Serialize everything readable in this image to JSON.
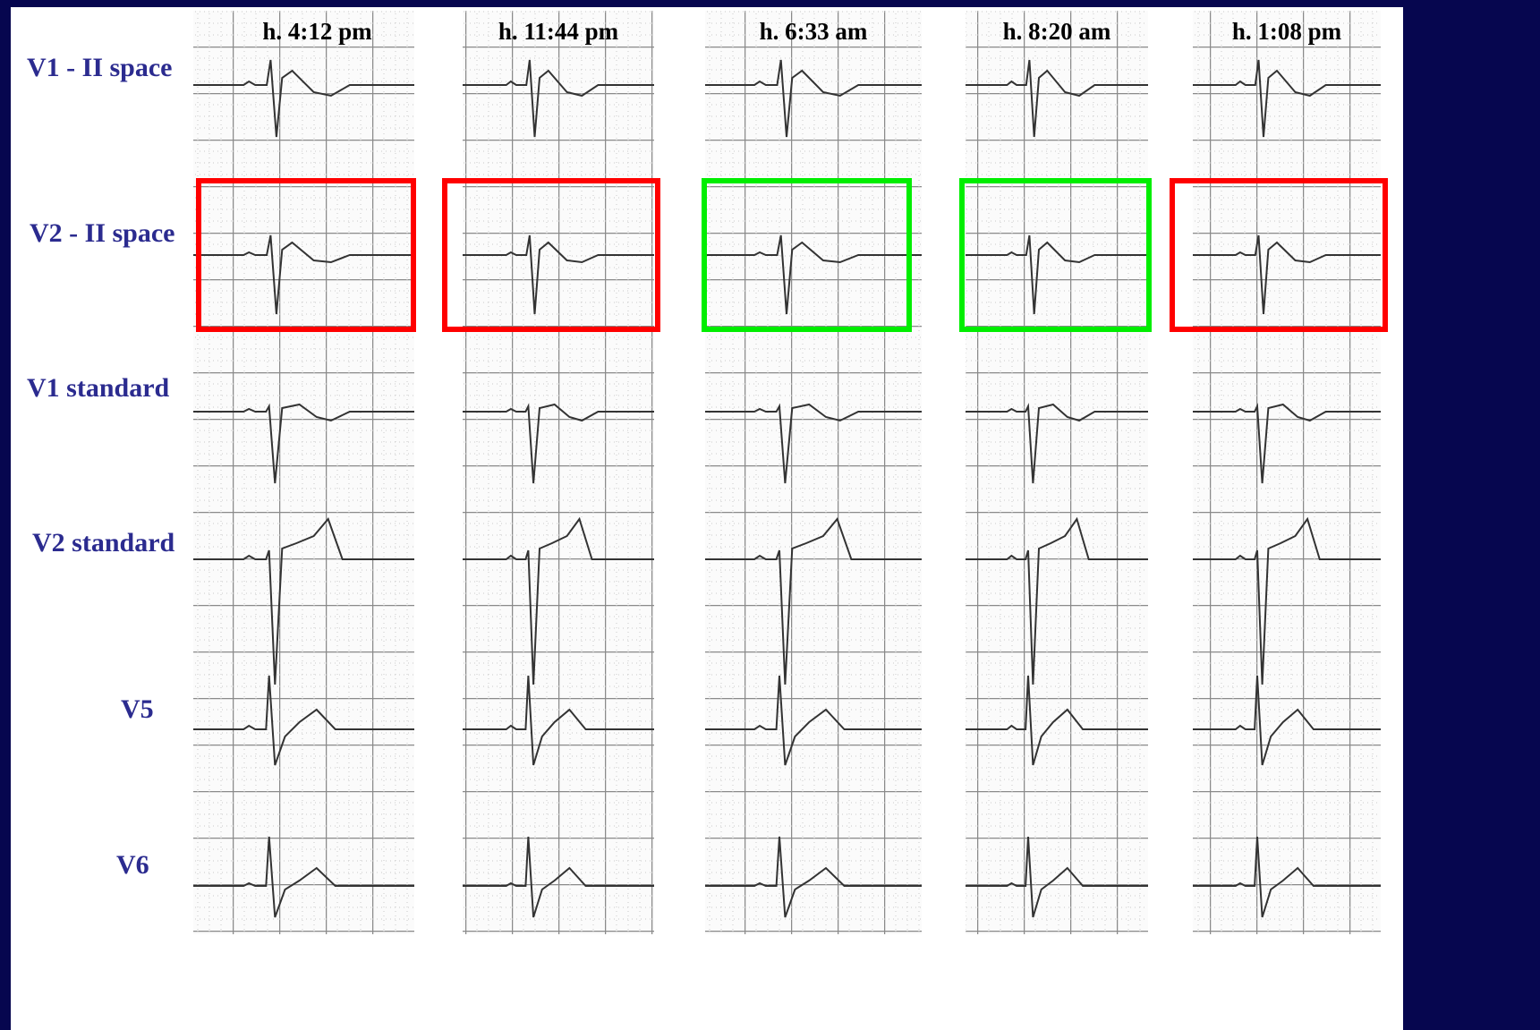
{
  "columns": [
    {
      "time": "h. 4:12 pm",
      "box_color": "#ff0000"
    },
    {
      "time": "h. 11:44 pm",
      "box_color": "#ff0000"
    },
    {
      "time": "h. 6:33 am",
      "box_color": "#00ee00"
    },
    {
      "time": "h. 8:20 am",
      "box_color": "#00ee00"
    },
    {
      "time": "h. 1:08 pm",
      "box_color": "#ff0000"
    }
  ],
  "rows": [
    {
      "label": "V1 - II space"
    },
    {
      "label": "V2 - II space"
    },
    {
      "label": "V1 standard"
    },
    {
      "label": "V2 standard"
    },
    {
      "label": "V5"
    },
    {
      "label": "V6"
    }
  ]
}
